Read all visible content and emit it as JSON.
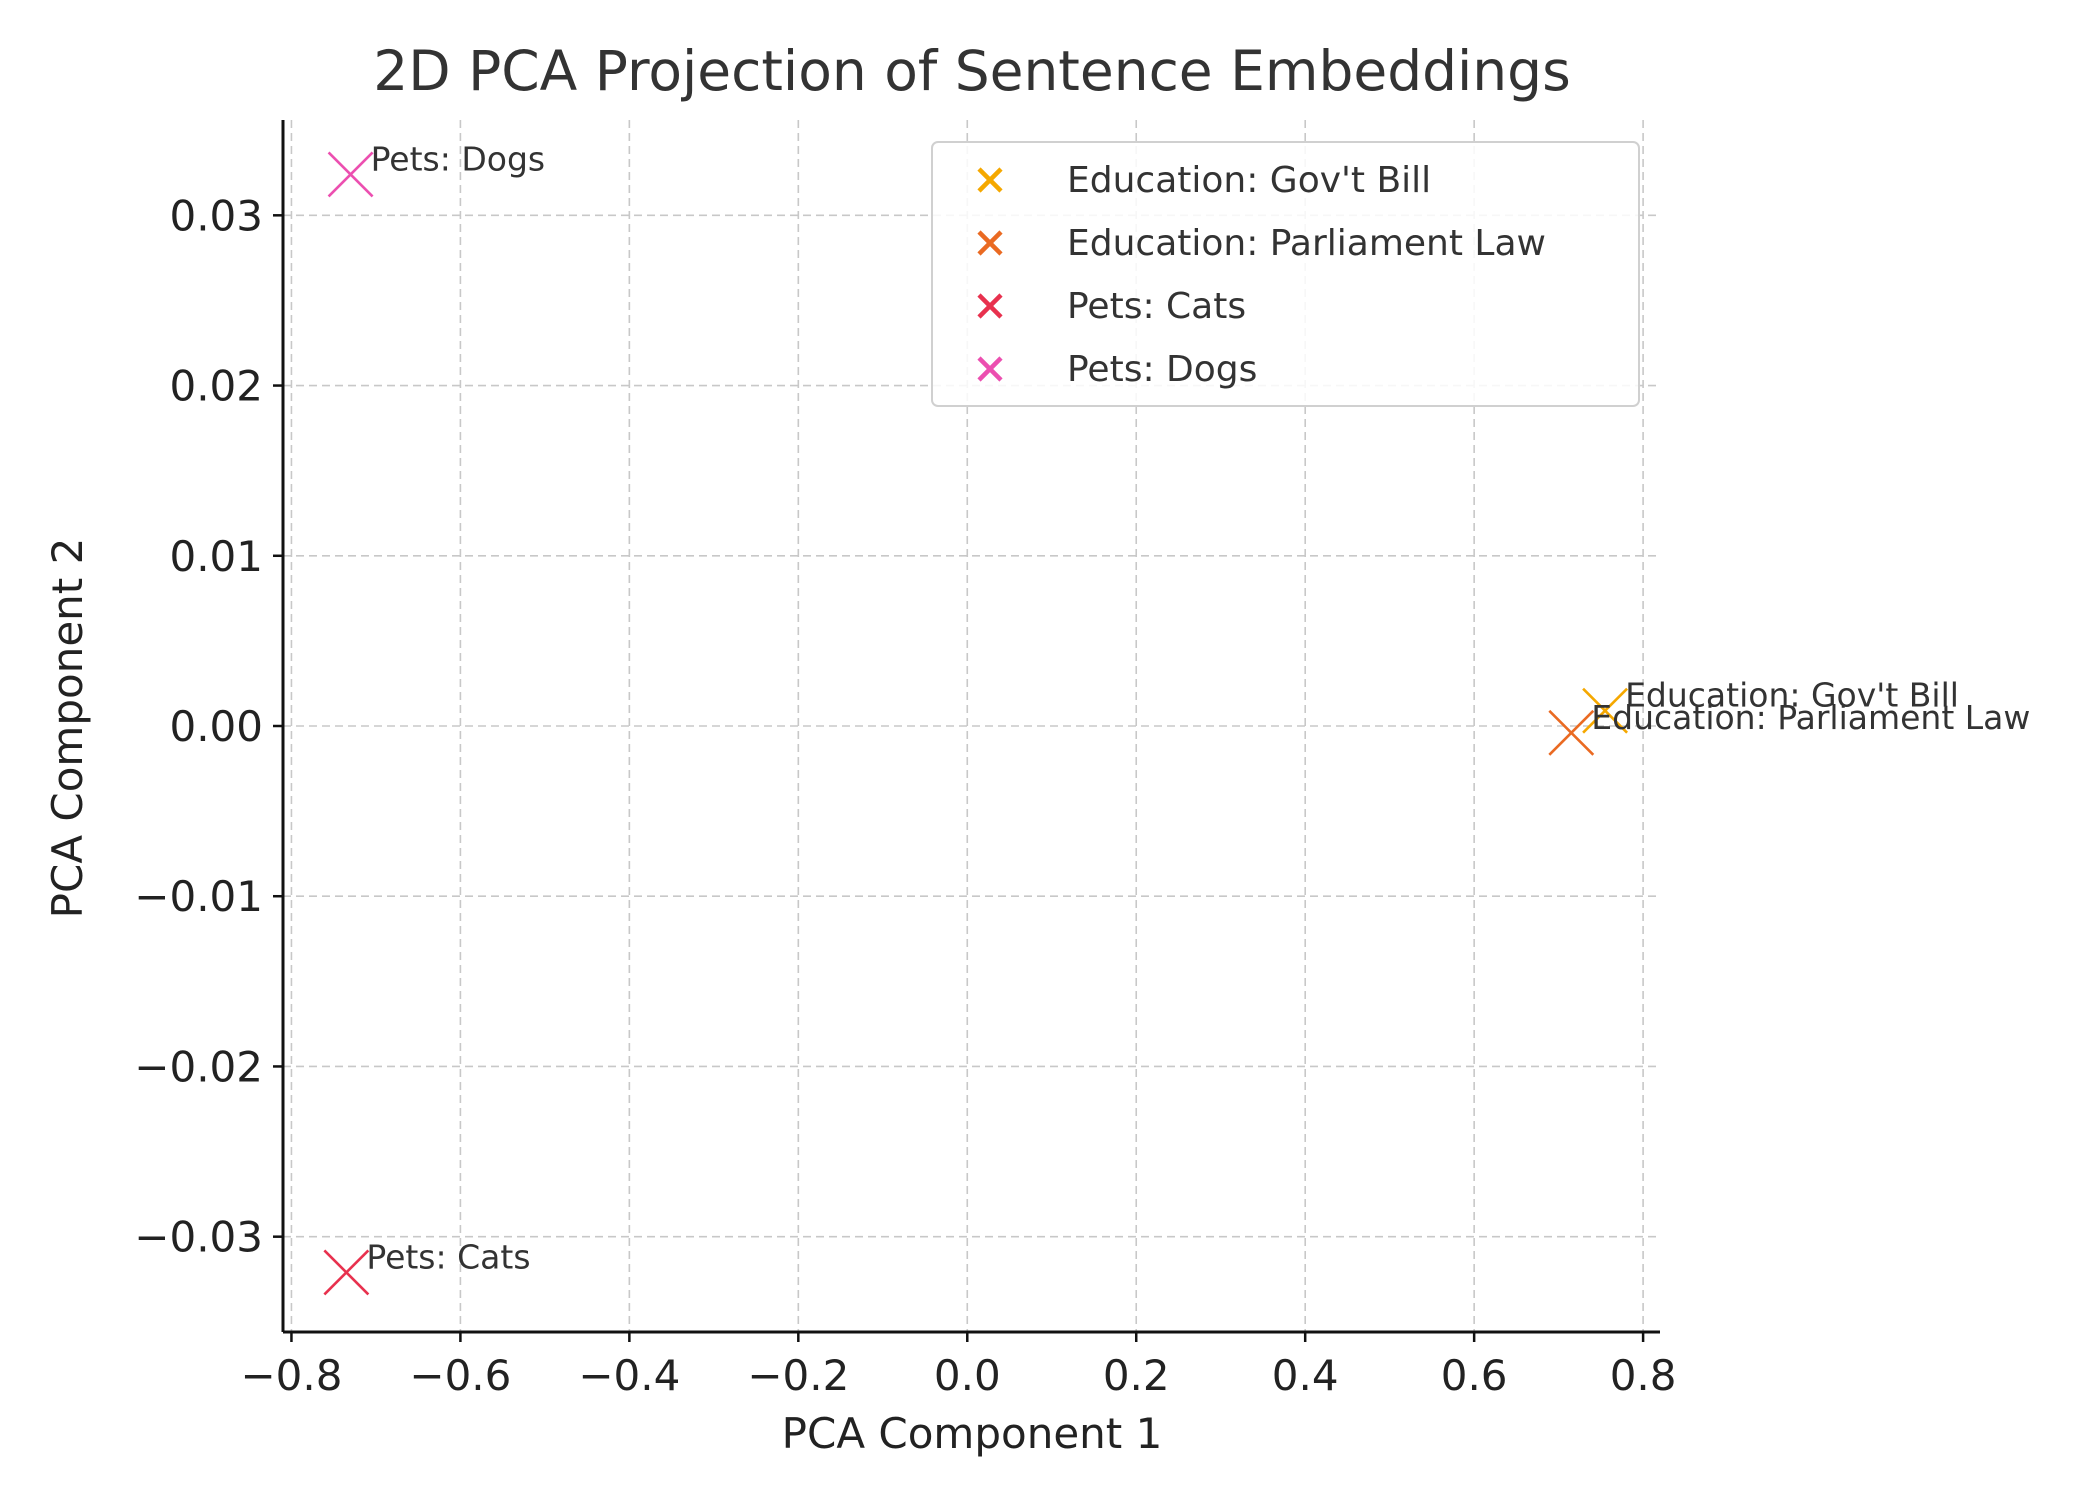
{
  "chart_data": {
    "type": "scatter",
    "title": "2D PCA Projection of Sentence Embeddings",
    "xlabel": "PCA Component 1",
    "ylabel": "PCA Component 2",
    "xlim": [
      -0.81,
      0.82
    ],
    "ylim": [
      -0.0356,
      0.0356
    ],
    "x_ticks": [
      -0.8,
      -0.6,
      -0.4,
      -0.2,
      0.0,
      0.2,
      0.4,
      0.6,
      0.8
    ],
    "y_ticks": [
      0.03,
      0.02,
      0.01,
      0.0,
      -0.01,
      -0.02,
      -0.03
    ],
    "x_tick_labels": [
      "−0.8",
      "−0.6",
      "−0.4",
      "−0.2",
      "0.0",
      "0.2",
      "0.4",
      "0.6",
      "0.8"
    ],
    "y_tick_labels": [
      "0.03",
      "0.02",
      "0.01",
      "0.00",
      "−0.01",
      "−0.02",
      "−0.03"
    ],
    "grid": true,
    "marker": "x",
    "legend_position": "top-right",
    "series": [
      {
        "name": "Education: Gov't Bill",
        "color": "#F5A800",
        "x": [
          0.755
        ],
        "y": [
          0.0009
        ],
        "label": "Education: Gov't Bill"
      },
      {
        "name": "Education: Parliament Law",
        "color": "#EA6A22",
        "x": [
          0.715
        ],
        "y": [
          -0.0004
        ],
        "label": "Education: Parliament Law"
      },
      {
        "name": "Pets: Cats",
        "color": "#E8314E",
        "x": [
          -0.735
        ],
        "y": [
          -0.0321
        ],
        "label": "Pets: Cats"
      },
      {
        "name": "Pets: Dogs",
        "color": "#EC4FB0",
        "x": [
          -0.73
        ],
        "y": [
          0.0324
        ],
        "label": "Pets: Dogs"
      }
    ]
  }
}
